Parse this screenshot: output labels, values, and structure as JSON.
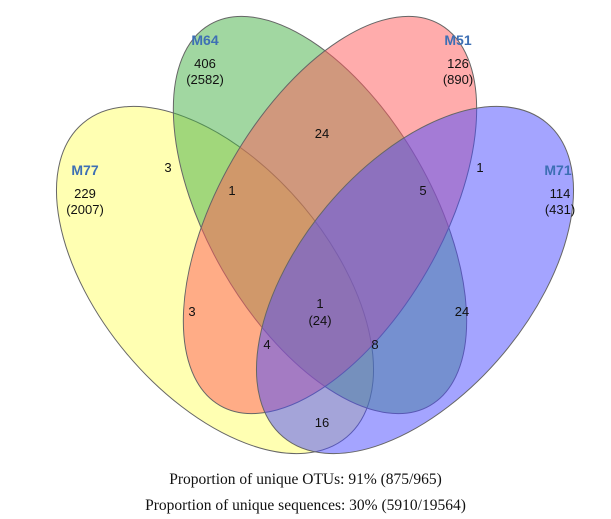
{
  "sets": [
    {
      "id": "m77",
      "name": "M77",
      "unique": "229",
      "unique_seqs": "(2007)",
      "color": "#ffff66"
    },
    {
      "id": "m64",
      "name": "M64",
      "unique": "406",
      "unique_seqs": "(2582)",
      "color": "#44b044"
    },
    {
      "id": "m51",
      "name": "M51",
      "unique": "126",
      "unique_seqs": "(890)",
      "color": "#ff5a5a"
    },
    {
      "id": "m71",
      "name": "M71",
      "unique": "114",
      "unique_seqs": "(431)",
      "color": "#4a4aff"
    }
  ],
  "label_color": "#3d6fb4",
  "intersections": {
    "m77_m64": "3",
    "m64_m51": "24",
    "m51_m71": "1",
    "m77_m64_m51": "1",
    "m64_m51_m71": "5",
    "m77_m51": "3",
    "m64_m71": "24",
    "all_four": "1",
    "all_four_seqs": "(24)",
    "m77_m51_m71": "4",
    "m77_m64_m71": "8",
    "m77_m71": "16"
  },
  "captions": {
    "otus": "Proportion of unique OTUs: 91% (875/965)",
    "sequences": "Proportion of unique sequences: 30% (5910/19564)"
  }
}
